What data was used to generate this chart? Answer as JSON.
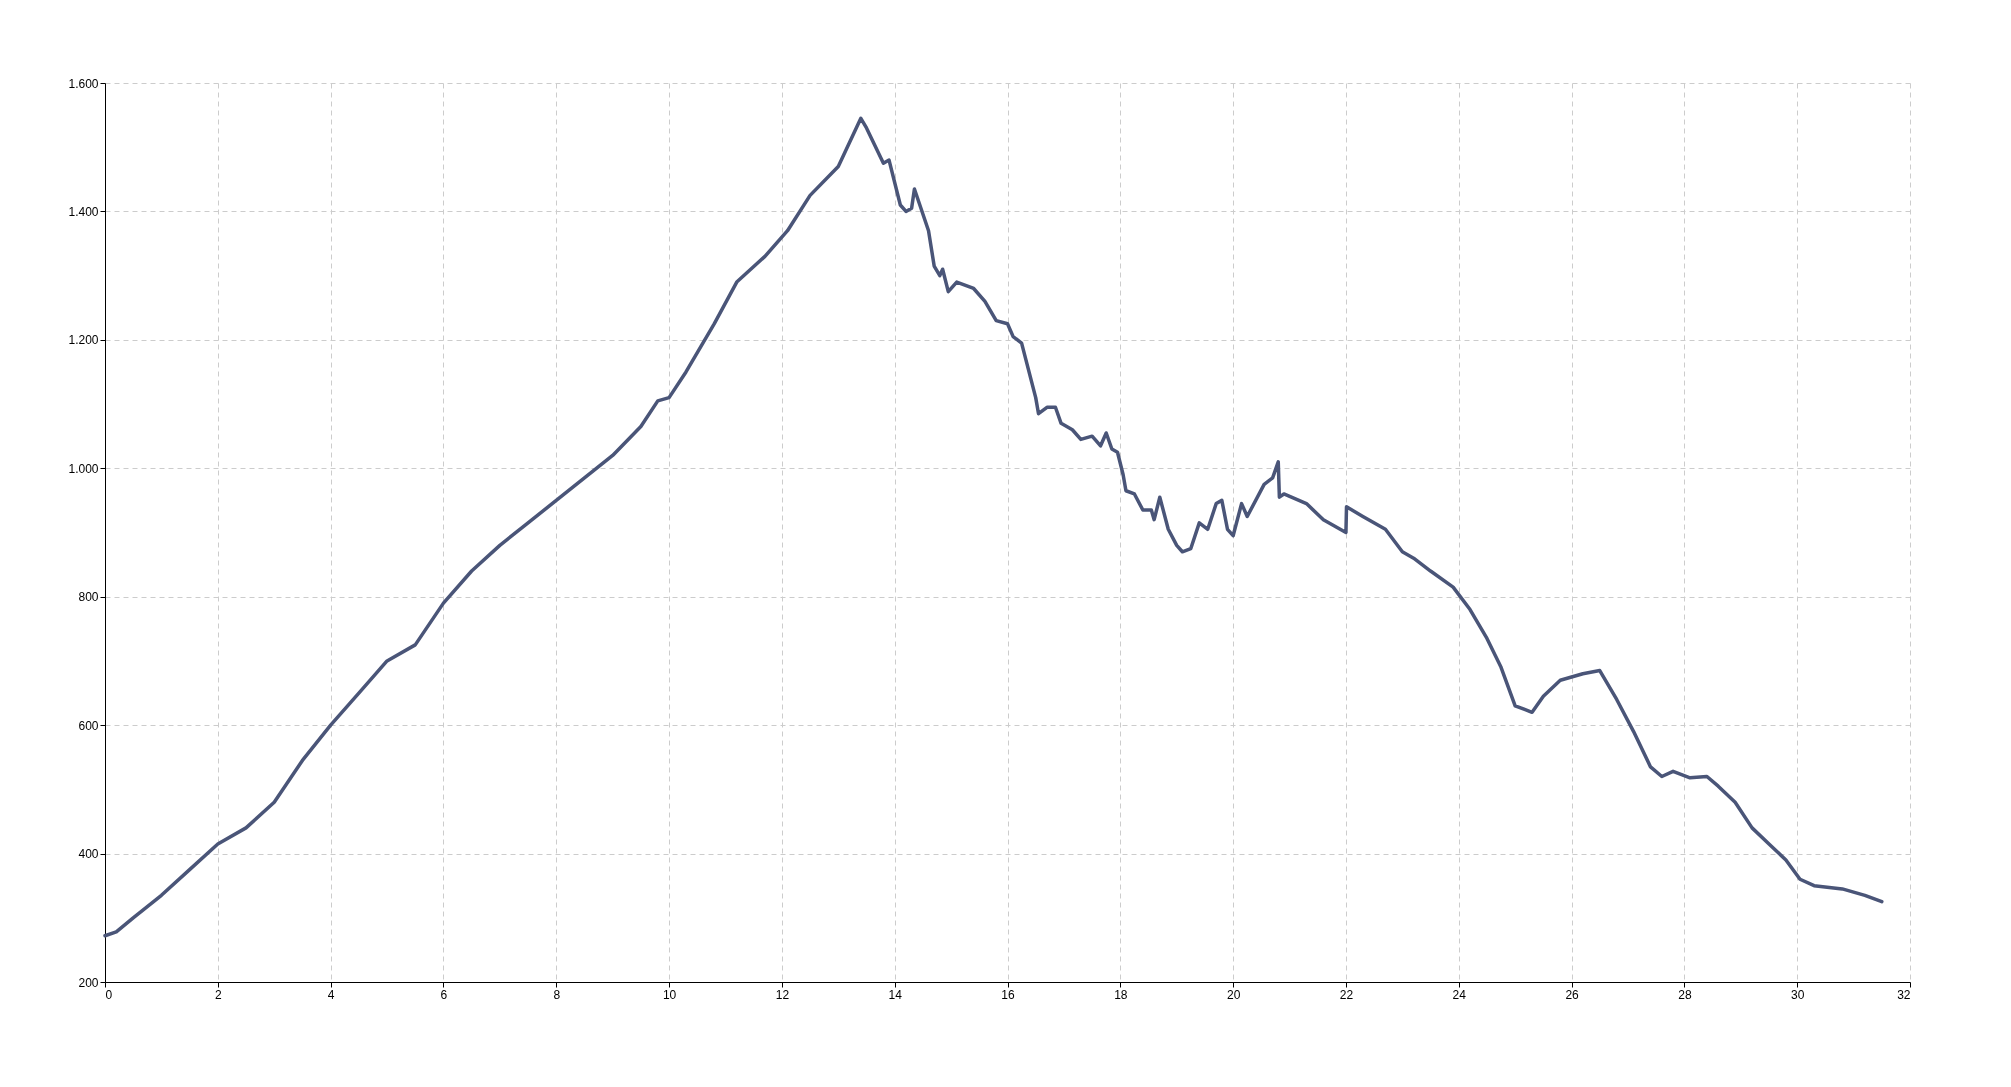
{
  "chart_data": {
    "type": "line",
    "x": [
      0,
      0.2,
      0.5,
      1,
      1.5,
      2,
      2.5,
      3,
      3.5,
      4,
      4.5,
      5,
      5.5,
      6,
      6.5,
      7,
      7.5,
      8,
      8.5,
      9,
      9.5,
      9.8,
      10,
      10.3,
      10.8,
      11.2,
      11.7,
      12.1,
      12.5,
      13,
      13.4,
      13.5,
      13.8,
      13.9,
      14.1,
      14.2,
      14.3,
      14.35,
      14.6,
      14.7,
      14.8,
      14.85,
      14.95,
      15.1,
      15.4,
      15.6,
      15.8,
      16,
      16.1,
      16.25,
      16.5,
      16.55,
      16.7,
      16.85,
      16.95,
      17.15,
      17.3,
      17.5,
      17.65,
      17.75,
      17.85,
      17.95,
      18.05,
      18.1,
      18.25,
      18.4,
      18.55,
      18.6,
      18.7,
      18.85,
      19,
      19.1,
      19.25,
      19.4,
      19.55,
      19.7,
      19.8,
      19.9,
      20,
      20.15,
      20.25,
      20.55,
      20.7,
      20.8,
      20.82,
      20.9,
      21.3,
      21.6,
      22,
      22.01,
      22.3,
      22.7,
      23,
      23.2,
      23.5,
      23.9,
      24.2,
      24.5,
      24.75,
      25,
      25.3,
      25.5,
      25.8,
      26.2,
      26.5,
      26.8,
      27.1,
      27.4,
      27.6,
      27.8,
      28.1,
      28.4,
      28.6,
      28.9,
      29.2,
      29.5,
      29.8,
      30.05,
      30.3,
      30.8,
      31.2,
      31.5
    ],
    "series": [
      {
        "color": "#4a5578",
        "values": [
          272,
          278,
          300,
          335,
          375,
          415,
          440,
          480,
          545,
          600,
          650,
          700,
          725,
          790,
          840,
          880,
          915,
          950,
          985,
          1020,
          1065,
          1105,
          1110,
          1150,
          1225,
          1290,
          1330,
          1370,
          1425,
          1470,
          1545,
          1530,
          1475,
          1480,
          1410,
          1400,
          1405,
          1435,
          1370,
          1315,
          1300,
          1310,
          1275,
          1290,
          1280,
          1260,
          1230,
          1225,
          1205,
          1195,
          1110,
          1085,
          1095,
          1095,
          1070,
          1060,
          1045,
          1050,
          1035,
          1055,
          1030,
          1025,
          990,
          965,
          960,
          935,
          935,
          920,
          955,
          905,
          880,
          870,
          875,
          915,
          905,
          945,
          950,
          905,
          895,
          945,
          925,
          975,
          985,
          1010,
          955,
          960,
          945,
          920,
          900,
          940,
          925,
          905,
          870,
          860,
          840,
          815,
          780,
          735,
          690,
          630,
          620,
          645,
          670,
          680,
          685,
          640,
          590,
          535,
          520,
          528,
          518,
          520,
          505,
          480,
          440,
          415,
          390,
          360,
          350,
          345,
          335,
          325
        ]
      }
    ],
    "xlim": [
      0,
      32
    ],
    "xticks": [
      0,
      2,
      4,
      6,
      8,
      10,
      12,
      14,
      16,
      18,
      20,
      22,
      24,
      26,
      28,
      30,
      32
    ],
    "ylim": [
      200,
      1600
    ],
    "yticks": [
      200,
      400,
      600,
      800,
      {
        "value": 1000,
        "label": "1.000"
      },
      {
        "value": 1200,
        "label": "1.200"
      },
      {
        "value": 1400,
        "label": "1.400"
      },
      {
        "value": 1600,
        "label": "1.600"
      }
    ],
    "grid": true,
    "marker": "none",
    "line_style": "solid"
  }
}
